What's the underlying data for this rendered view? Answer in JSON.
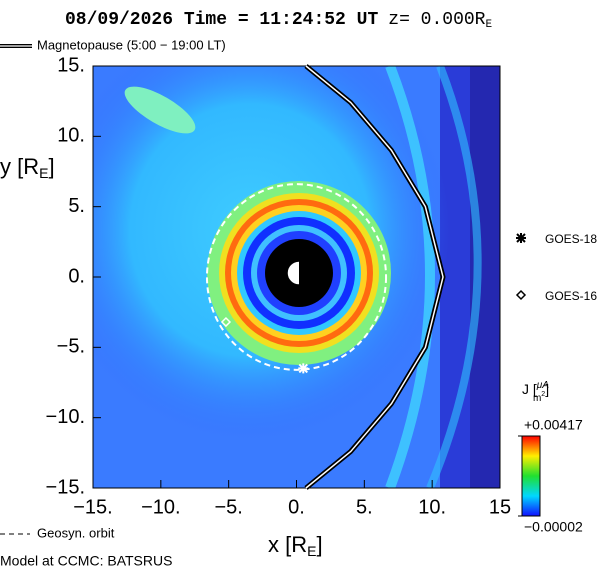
{
  "chart_data": {
    "type": "field",
    "title": "08/09/2026 Time = 11:24:52 UT",
    "z_label": [
      "z= 0.000R",
      "E"
    ],
    "x_label": [
      "x [R",
      "E",
      "]"
    ],
    "y_label": [
      "y [R",
      "E",
      "]"
    ],
    "xlim": [
      -15,
      15
    ],
    "ylim": [
      -15,
      15
    ],
    "xticks": [
      {
        "value": -15,
        "label": "−15."
      },
      {
        "value": -10,
        "label": "−10."
      },
      {
        "value": -5,
        "label": "−5."
      },
      {
        "value": 0,
        "label": "0."
      },
      {
        "value": 5,
        "label": "5."
      },
      {
        "value": 10,
        "label": "10."
      },
      15
    ],
    "yticks": [
      {
        "value": 15,
        "label": "15."
      },
      {
        "value": 10,
        "label": "10."
      },
      {
        "value": 5,
        "label": "5."
      },
      {
        "value": 0,
        "label": "0."
      },
      {
        "value": -5,
        "label": "−5."
      },
      {
        "value": -10,
        "label": "−10."
      },
      {
        "value": -15,
        "label": "−15."
      }
    ],
    "magnetopause": {
      "name": "Magnetopause (5:00 − 19:00 LT)",
      "x": [
        0.7,
        4,
        7,
        9.5,
        10.8,
        9.5,
        7,
        4,
        0.7
      ],
      "y": [
        15,
        12.4,
        9,
        5,
        0,
        -5,
        -9,
        -12.4,
        -15
      ]
    },
    "geosyn_orbit": {
      "name": "Geosyn. orbit",
      "radius": 6.6
    },
    "satellites": [
      {
        "name": "GOES-18",
        "marker": "star",
        "x": 0.5,
        "y": -6.5
      },
      {
        "name": "GOES-16",
        "marker": "diamond",
        "x": -5.2,
        "y": -3.2
      }
    ],
    "colorbar": {
      "label": [
        "J [",
        "μA",
        "m",
        "2",
        "]"
      ],
      "lim": [
        -2e-05,
        0.00417
      ],
      "ticks": [
        {
          "value": 0.00417,
          "label": "+0.00417"
        },
        {
          "value": -2e-05,
          "label": "−0.00002"
        }
      ]
    },
    "footer": "Model at CCMC: BATSRUS"
  }
}
